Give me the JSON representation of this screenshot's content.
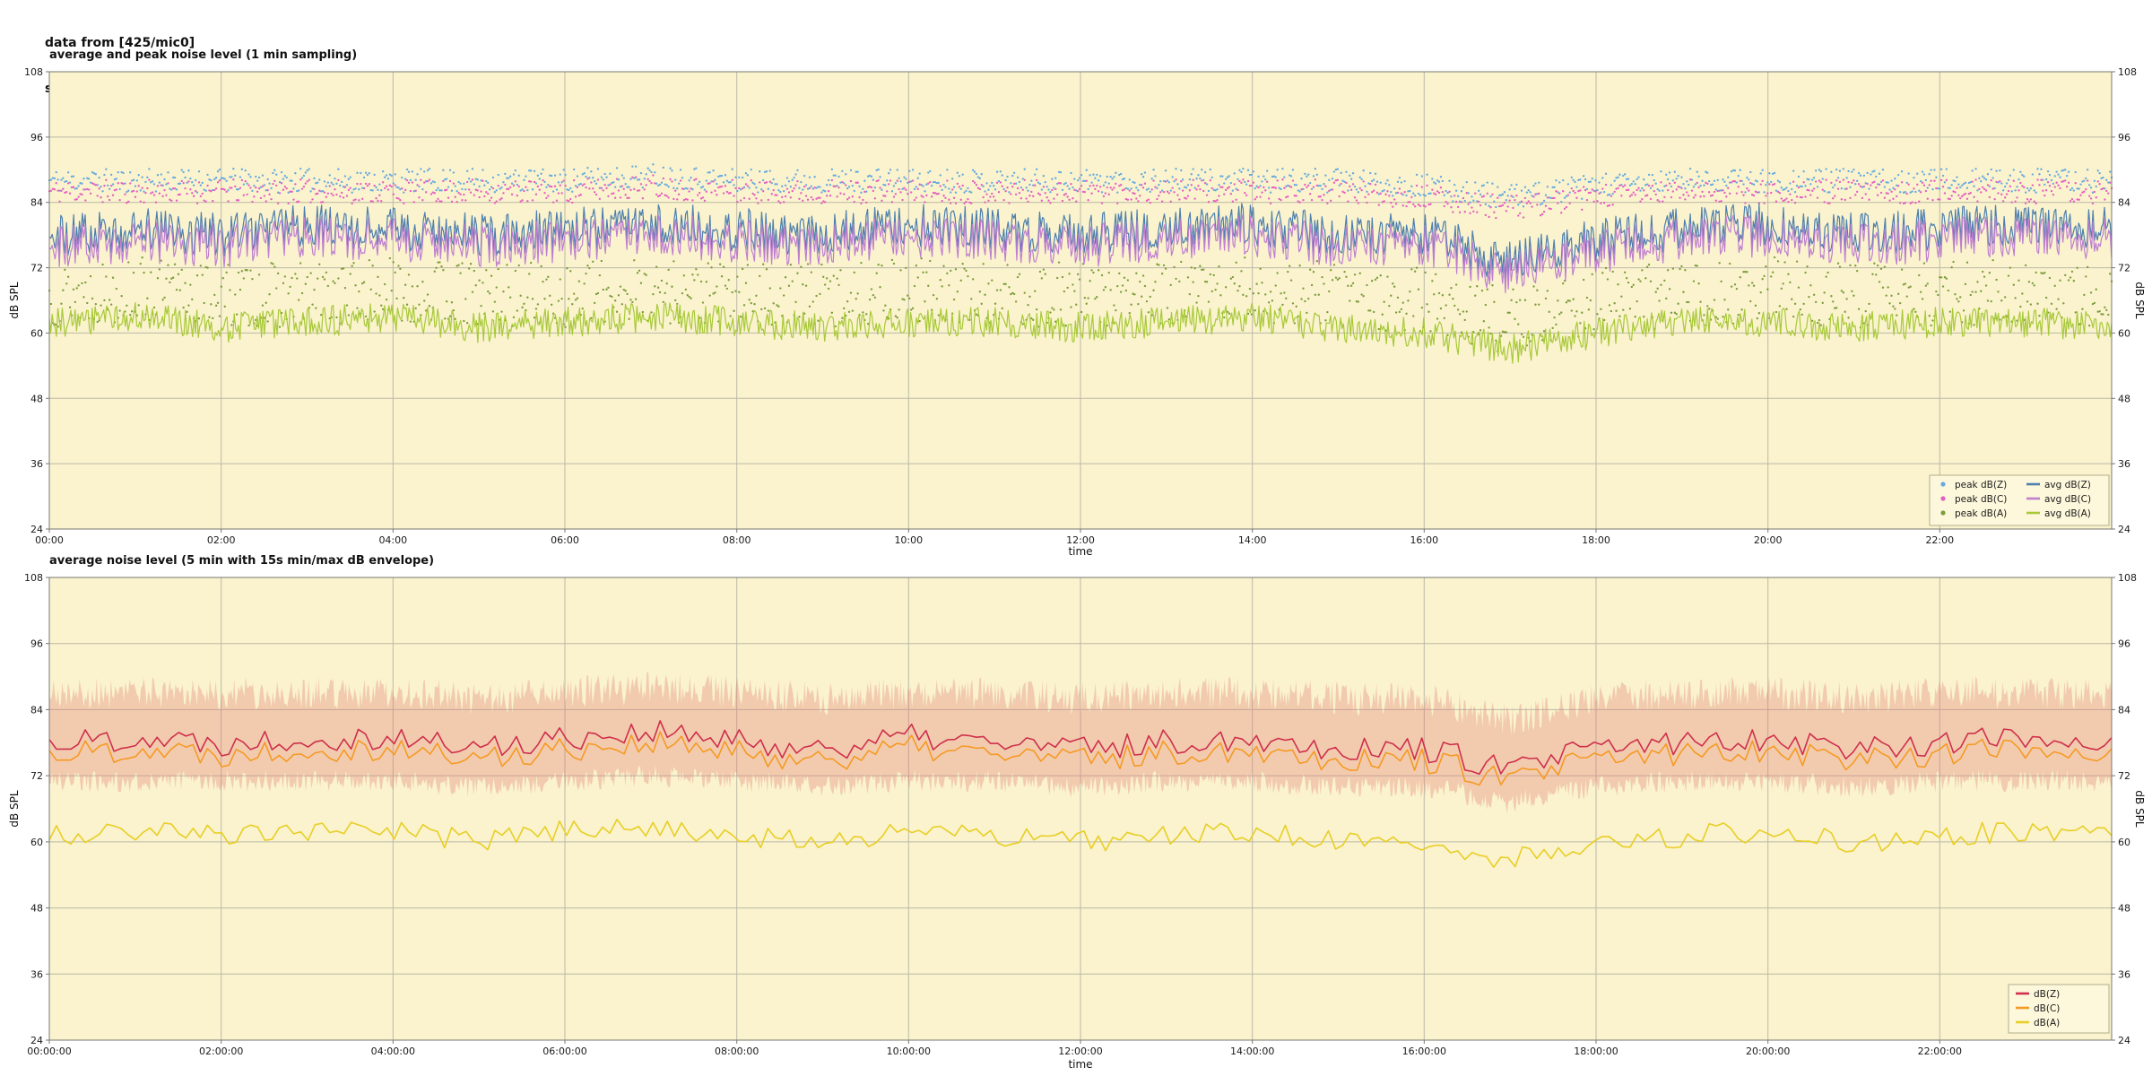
{
  "header": {
    "line1": "data from [425/mic0]",
    "line2": "starting point is [20260131_000049]"
  },
  "colors": {
    "plot_bg": "#faf3cd",
    "grid": "#bcb8a8",
    "axis": "#777770",
    "text": "#1a1a1a",
    "legend_bg": "#fdf8dc",
    "legend_border": "#b3ae8c"
  },
  "chart_data": [
    {
      "type": "line",
      "title": "average and peak noise level (1 min sampling)",
      "xlabel": "time",
      "ylabel_left": "dB SPL",
      "ylabel_right": "dB SPL",
      "ylim": [
        24,
        108
      ],
      "yticks": [
        24,
        36,
        48,
        60,
        72,
        84,
        96,
        108
      ],
      "xlim_hours": [
        0,
        24
      ],
      "xtick_hours": [
        0,
        2,
        4,
        6,
        8,
        10,
        12,
        14,
        16,
        18,
        20,
        22
      ],
      "xtick_labels": [
        "00:00",
        "02:00",
        "04:00",
        "06:00",
        "08:00",
        "10:00",
        "12:00",
        "14:00",
        "16:00",
        "18:00",
        "20:00",
        "22:00"
      ],
      "grid": true,
      "legend_position": "lower right",
      "legend": [
        "peak dB(Z)",
        "peak dB(C)",
        "peak dB(A)",
        "avg dB(Z)",
        "avg dB(C)",
        "avg dB(A)"
      ],
      "series": [
        {
          "id": "peak-dbz",
          "name": "peak dB(Z)",
          "style": "scatter",
          "color": "#67aadf",
          "samples": 1200,
          "seed": 11,
          "jitter_db": 2.2,
          "base_hourly_values": [
            88,
            88,
            88,
            88,
            88,
            88,
            88,
            89,
            88,
            88,
            88,
            88,
            88,
            88,
            88,
            88,
            87,
            85,
            87,
            88,
            88,
            88,
            88,
            88,
            88
          ]
        },
        {
          "id": "peak-dbc",
          "name": "peak dB(C)",
          "style": "scatter",
          "color": "#e55fc0",
          "samples": 1200,
          "seed": 11,
          "jitter_db": 2.2,
          "base_hourly_values": [
            86,
            86,
            86,
            86,
            86,
            86,
            86,
            87,
            86,
            86,
            86,
            86,
            86,
            86,
            86,
            86,
            85,
            83,
            85,
            86,
            86,
            86,
            86,
            86,
            86
          ]
        },
        {
          "id": "peak-dba",
          "name": "peak dB(A)",
          "style": "scatter",
          "color": "#7d9c3c",
          "samples": 1200,
          "seed": 13,
          "jitter_db": 6,
          "base_hourly_values": [
            67,
            68,
            67,
            67,
            68,
            67,
            67,
            68,
            67,
            67,
            68,
            67,
            67,
            67,
            68,
            67,
            66,
            62,
            66,
            67,
            68,
            67,
            67,
            68,
            67
          ]
        },
        {
          "id": "avg-dbz",
          "name": "avg dB(Z)",
          "style": "line",
          "color": "#4e7fae",
          "width": 1.2,
          "samples": 1440,
          "seed": 14,
          "jitter_db": 4.0,
          "base_hourly_values": [
            78,
            79,
            78,
            80,
            79,
            78,
            79,
            80,
            79,
            78,
            80,
            79,
            78,
            79,
            80,
            78,
            78,
            73,
            77,
            79,
            80,
            78,
            79,
            80,
            79
          ]
        },
        {
          "id": "avg-dbc",
          "name": "avg dB(C)",
          "style": "line",
          "color": "#bf7fd0",
          "width": 1.2,
          "samples": 1440,
          "seed": 14,
          "jitter_db": 4.0,
          "base_hourly_values": [
            76,
            77,
            76,
            78,
            77,
            76,
            77,
            78,
            77,
            76,
            78,
            77,
            76,
            77,
            78,
            76,
            76,
            71,
            75,
            77,
            78,
            76,
            77,
            78,
            77
          ]
        },
        {
          "id": "avg-dba",
          "name": "avg dB(A)",
          "style": "line",
          "color": "#a8c93a",
          "width": 1.2,
          "samples": 1440,
          "seed": 16,
          "jitter_db": 2.8,
          "base_hourly_values": [
            62,
            63,
            61,
            62,
            63,
            61,
            62,
            63,
            62,
            61,
            62,
            62,
            61,
            62,
            63,
            61,
            60,
            57,
            60,
            62,
            62,
            61,
            62,
            62,
            61
          ]
        }
      ]
    },
    {
      "type": "line",
      "title": "average noise level (5 min with 15s min/max dB envelope)",
      "xlabel": "time",
      "ylabel_left": "dB SPL",
      "ylabel_right": "dB SPL",
      "ylim": [
        24,
        108
      ],
      "yticks": [
        24,
        36,
        48,
        60,
        72,
        84,
        96,
        108
      ],
      "xlim_hours": [
        0,
        24
      ],
      "xtick_hours": [
        0,
        2,
        4,
        6,
        8,
        10,
        12,
        14,
        16,
        18,
        20,
        22
      ],
      "xtick_labels": [
        "00:00:00",
        "02:00:00",
        "04:00:00",
        "06:00:00",
        "08:00:00",
        "10:00:00",
        "12:00:00",
        "14:00:00",
        "16:00:00",
        "18:00:00",
        "20:00:00",
        "22:00:00"
      ],
      "grid": true,
      "legend_position": "lower right",
      "legend": [
        "dB(Z)",
        "dB(C)",
        "dB(A)"
      ],
      "series": [
        {
          "id": "envelope",
          "name": "15s min/max envelope",
          "style": "band",
          "color": "rgba(225,112,105,0.30)",
          "samples": 1440,
          "seed": 21,
          "jitter_max_db": 3,
          "jitter_min_db": 2,
          "base_max_hourly_values": [
            87,
            87,
            87,
            87,
            87,
            86,
            87,
            88,
            87,
            86,
            87,
            87,
            86,
            87,
            87,
            86,
            86,
            82,
            86,
            87,
            87,
            86,
            87,
            87,
            87
          ],
          "base_min_hourly_values": [
            71,
            71,
            71,
            71,
            71,
            70,
            71,
            72,
            71,
            70,
            71,
            71,
            70,
            71,
            71,
            70,
            70,
            67,
            70,
            71,
            71,
            70,
            71,
            71,
            71
          ]
        },
        {
          "id": "dba",
          "name": "dB(A)",
          "style": "line",
          "color": "#e8ce25",
          "width": 1.6,
          "samples": 288,
          "seed": 24,
          "jitter_db": 2.0,
          "base_hourly_values": [
            61,
            62,
            61,
            62,
            62,
            60,
            62,
            63,
            61,
            60,
            62,
            61,
            60,
            61,
            62,
            60,
            59,
            57,
            60,
            61,
            62,
            60,
            61,
            62,
            61
          ]
        },
        {
          "id": "dbc",
          "name": "dB(C)",
          "style": "line",
          "color": "#f59a23",
          "width": 1.6,
          "samples": 288,
          "seed": 22,
          "jitter_db": 2.4,
          "base_hourly_values": [
            76,
            77,
            76,
            77,
            77,
            75,
            77,
            78,
            76,
            75,
            77,
            76,
            75,
            76,
            77,
            75,
            75,
            71,
            75,
            76,
            77,
            75,
            76,
            77,
            76
          ]
        },
        {
          "id": "dbz",
          "name": "dB(Z)",
          "style": "line",
          "color": "#cf2f4a",
          "width": 1.6,
          "samples": 288,
          "seed": 22,
          "jitter_db": 2.4,
          "base_hourly_values": [
            78,
            79,
            78,
            79,
            79,
            77,
            79,
            80,
            78,
            77,
            79,
            78,
            77,
            78,
            79,
            77,
            77,
            73,
            77,
            78,
            79,
            77,
            78,
            79,
            78
          ]
        }
      ]
    }
  ]
}
